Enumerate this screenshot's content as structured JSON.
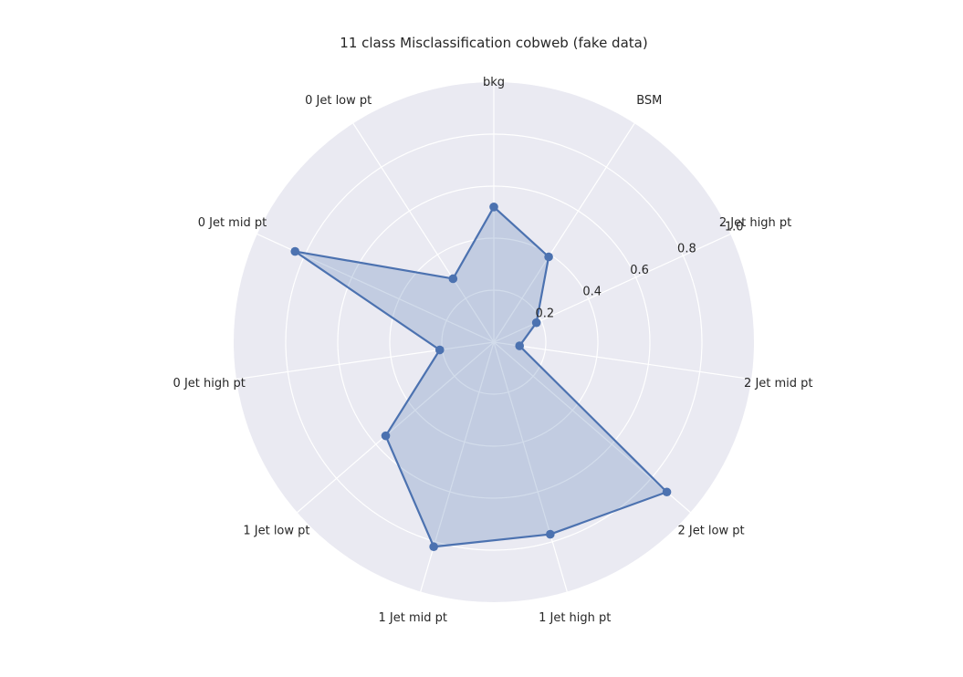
{
  "chart_data": {
    "type": "radar",
    "title": "11 class Misclassification cobweb (fake data)",
    "categories": [
      "bkg",
      "BSM",
      "2 Jet high pt",
      "2 Jet mid pt",
      "2 Jet low pt",
      "1 Jet high pt",
      "1 Jet mid pt",
      "1 Jet low pt",
      "0 Jet high pt",
      "0 Jet mid pt",
      "0 Jet low pt"
    ],
    "series": [
      {
        "values": [
          0.52,
          0.39,
          0.18,
          0.1,
          0.88,
          0.77,
          0.82,
          0.55,
          0.21,
          0.84,
          0.29
        ]
      }
    ],
    "rlim": [
      0,
      1.0
    ],
    "rticks": [
      0.2,
      0.4,
      0.6,
      0.8,
      1.0
    ],
    "rtick_labels": [
      "0.2",
      "0.4",
      "0.6",
      "0.8",
      "1.0"
    ],
    "grid": true,
    "colors": {
      "background": "#eaeaf2",
      "grid": "#ffffff",
      "line": "#4c72b0",
      "fill": "#4c72b0"
    }
  }
}
